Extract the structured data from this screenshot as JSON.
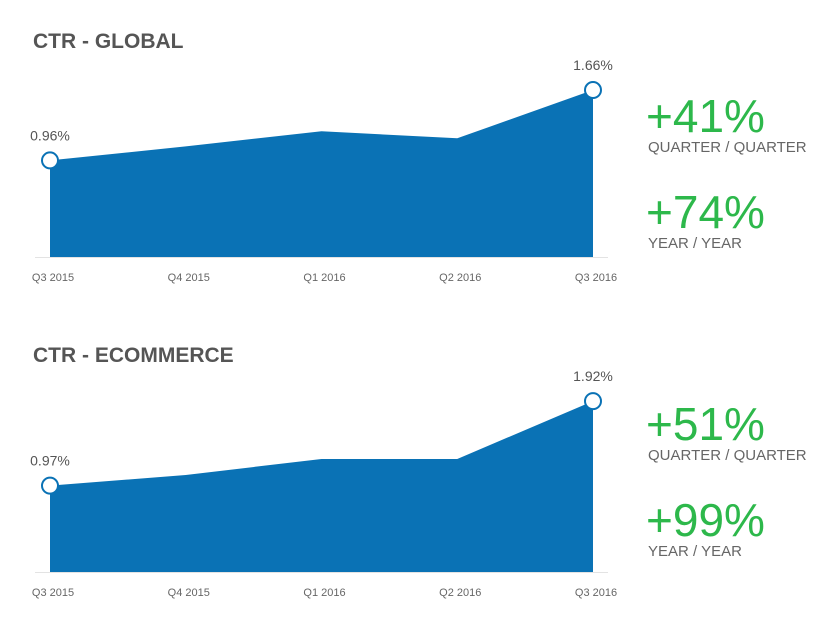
{
  "chart_data": [
    {
      "type": "area",
      "title": "CTR - GLOBAL",
      "categories": [
        "Q3 2015",
        "Q4 2015",
        "Q1 2016",
        "Q2 2016",
        "Q3 2016"
      ],
      "values": [
        0.96,
        1.1,
        1.25,
        1.18,
        1.66
      ],
      "value_labels": [
        "0.96%",
        null,
        null,
        null,
        "1.66%"
      ],
      "color": "#0a72b5",
      "ylim": [
        0,
        1.7
      ],
      "stats": [
        {
          "text": "+41%",
          "caption": "QUARTER / QUARTER"
        },
        {
          "text": "+74%",
          "caption": "YEAR / YEAR"
        }
      ]
    },
    {
      "type": "area",
      "title": "CTR - ECOMMERCE",
      "categories": [
        "Q3 2015",
        "Q4 2015",
        "Q1 2016",
        "Q2 2016",
        "Q3 2016"
      ],
      "values": [
        0.97,
        1.09,
        1.27,
        1.27,
        1.92
      ],
      "value_labels": [
        "0.97%",
        null,
        null,
        null,
        "1.92%"
      ],
      "color": "#0a72b5",
      "ylim": [
        0,
        2.0
      ],
      "stats": [
        {
          "text": "+51%",
          "caption": "QUARTER / QUARTER"
        },
        {
          "text": "+99%",
          "caption": "YEAR / YEAR"
        }
      ]
    }
  ]
}
